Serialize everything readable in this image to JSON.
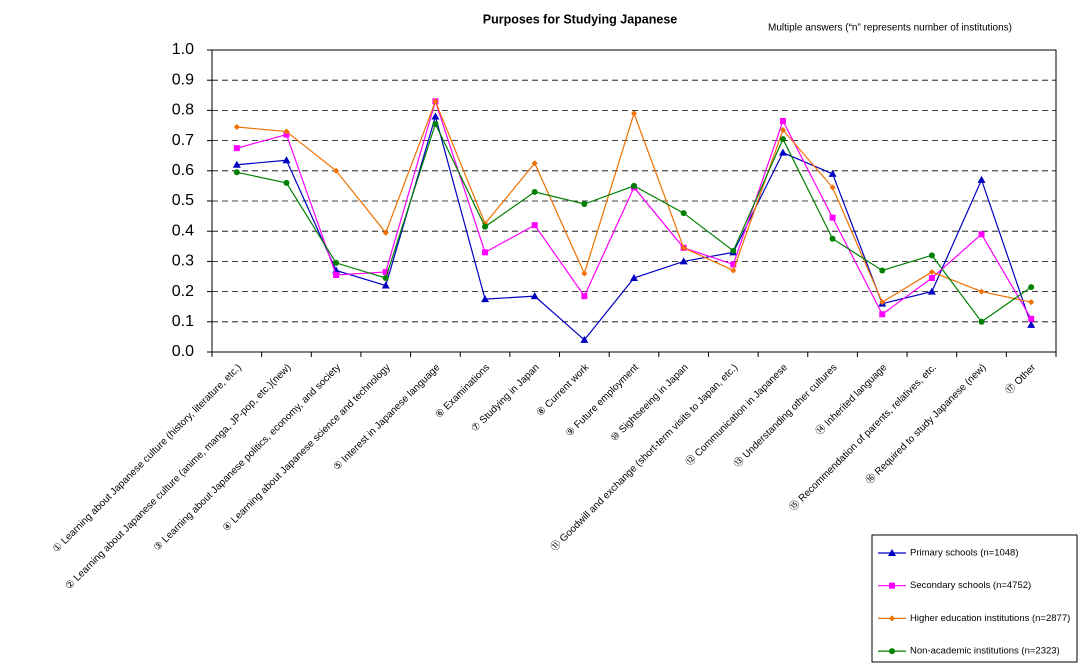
{
  "chart_data": {
    "type": "line",
    "title": "Purposes for Studying Japanese",
    "subtitle": "Multiple answers (“n” represents number of institutions)",
    "categories": [
      "① Learning about Japanese culture (history, literature, etc.)",
      "② Learning about Japanese culture (anime, manga, JP-pop, etc.)(new)",
      "③ Learning about Japanese politics, economy, and society",
      "④ Learning about Japanese science and technology",
      "⑤ Interest in Japanese language",
      "⑥ Examinations",
      "⑦ Studying in Japan",
      "⑧ Current work",
      "⑨ Future employment",
      "⑩ Sightseeing in Japan",
      "⑪ Goodwill and exchange (short-term visits to Japan, etc.)",
      "⑫ Communication in Japanese",
      "⑬ Understanding other cultures",
      "⑭ Inherited language",
      "⑮ Recommendation of parents, relatives, etc.",
      "⑯ Required to study Japanese (new)",
      "⑰ Other"
    ],
    "series": [
      {
        "name": "Primary schools (n=1048)",
        "color": "#0000c0",
        "marker": "triangle",
        "values": [
          0.62,
          0.635,
          0.27,
          0.22,
          0.78,
          0.175,
          0.185,
          0.04,
          0.245,
          0.3,
          0.33,
          0.66,
          0.59,
          0.16,
          0.2,
          0.57,
          0.09
        ]
      },
      {
        "name": "Secondary schools (n=4752)",
        "color": "#ff00ff",
        "marker": "square",
        "values": [
          0.675,
          0.72,
          0.255,
          0.265,
          0.83,
          0.33,
          0.42,
          0.185,
          0.545,
          0.345,
          0.29,
          0.765,
          0.445,
          0.125,
          0.245,
          0.39,
          0.11
        ]
      },
      {
        "name": "Higher education institutions (n=2877)",
        "color": "#f07000",
        "marker": "diamond",
        "values": [
          0.745,
          0.73,
          0.6,
          0.395,
          0.83,
          0.425,
          0.625,
          0.26,
          0.79,
          0.345,
          0.27,
          0.735,
          0.545,
          0.165,
          0.265,
          0.2,
          0.165
        ]
      },
      {
        "name": "Non-academic institutions (n=2323)",
        "color": "#008000",
        "marker": "circle",
        "values": [
          0.595,
          0.56,
          0.295,
          0.245,
          0.755,
          0.415,
          0.53,
          0.49,
          0.55,
          0.46,
          0.335,
          0.705,
          0.375,
          0.27,
          0.32,
          0.1,
          0.215
        ]
      }
    ],
    "ylim": [
      0,
      1
    ],
    "yticks": [
      {
        "value": 0,
        "label": "0.0"
      },
      0.1,
      0.2,
      0.3,
      0.4,
      0.5,
      0.6,
      0.7,
      0.8,
      0.9,
      {
        "value": 1,
        "label": "1.0"
      }
    ],
    "grid": true,
    "legend": "bottom-right"
  }
}
